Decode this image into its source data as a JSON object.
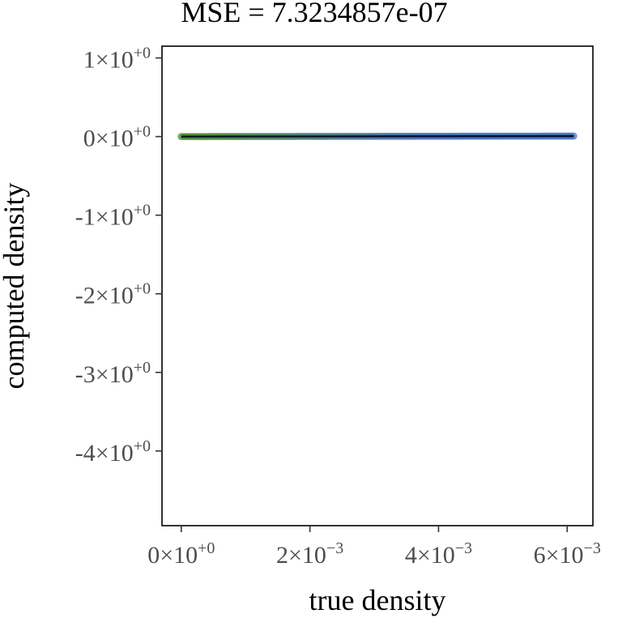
{
  "chart_data": {
    "type": "scatter",
    "title": "MSE = 7.3234857e-07",
    "xlabel": "true density",
    "ylabel": "computed density",
    "xlim": [
      -0.0003,
      0.0064
    ],
    "ylim": [
      -4.95,
      1.15
    ],
    "x_ticks": [
      {
        "value": 0,
        "mantissa": "0",
        "exponent": "+0"
      },
      {
        "value": 0.002,
        "mantissa": "2",
        "exponent": "−3"
      },
      {
        "value": 0.004,
        "mantissa": "4",
        "exponent": "−3"
      },
      {
        "value": 0.006,
        "mantissa": "6",
        "exponent": "−3"
      }
    ],
    "y_ticks": [
      {
        "value": 1,
        "mantissa": "1",
        "exponent": "+0"
      },
      {
        "value": 0,
        "mantissa": "0",
        "exponent": "+0"
      },
      {
        "value": -1,
        "mantissa": "-1",
        "exponent": "+0"
      },
      {
        "value": -2,
        "mantissa": "-2",
        "exponent": "+0"
      },
      {
        "value": -3,
        "mantissa": "-3",
        "exponent": "+0"
      },
      {
        "value": -4,
        "mantissa": "-4",
        "exponent": "+0"
      }
    ],
    "times_symbol": "×",
    "base": "10",
    "points": {
      "x_start": 0.0,
      "x_end": 0.0061,
      "y_start": 0.0,
      "y_end": 0.0061
    },
    "colors": {
      "low": "#3a8a1a",
      "high": "#3366b3",
      "line": "#0a0a2a"
    },
    "grid": false,
    "legend": "none"
  }
}
